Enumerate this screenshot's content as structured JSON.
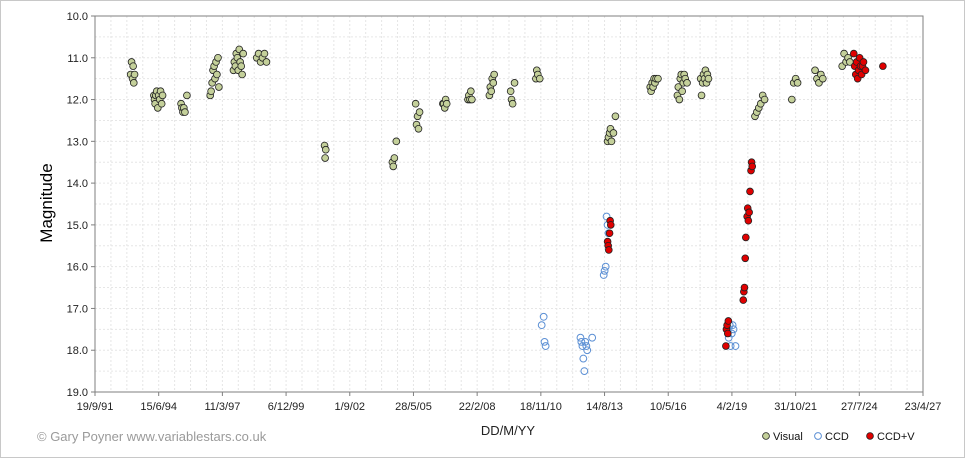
{
  "chart_data": {
    "type": "scatter",
    "title": "",
    "xlabel": "DD/M/YY",
    "ylabel": "Magnitude",
    "ylim": [
      10.0,
      19.0
    ],
    "y_inverted": true,
    "y_ticks": [
      "10.0",
      "11.0",
      "12.0",
      "13.0",
      "14.0",
      "15.0",
      "16.0",
      "17.0",
      "18.0",
      "19.0"
    ],
    "x_ticks": [
      "19/9/91",
      "15/6/94",
      "11/3/97",
      "6/12/99",
      "1/9/02",
      "28/5/05",
      "22/2/08",
      "18/11/10",
      "14/8/13",
      "10/5/16",
      "4/2/19",
      "31/10/21",
      "27/7/24",
      "23/4/27"
    ],
    "grid": true,
    "legend_position": "bottom-right",
    "series": [
      {
        "name": "Visual",
        "color": "#c4d09a",
        "marker": "filled-circle",
        "points": [
          [
            "1993-04-01",
            11.4
          ],
          [
            "1993-04-15",
            11.1
          ],
          [
            "1993-05-01",
            11.5
          ],
          [
            "1993-05-10",
            11.2
          ],
          [
            "1993-05-20",
            11.6
          ],
          [
            "1993-06-01",
            11.4
          ],
          [
            "1994-04-01",
            11.9
          ],
          [
            "1994-04-10",
            12.0
          ],
          [
            "1994-04-20",
            12.1
          ],
          [
            "1994-05-01",
            11.9
          ],
          [
            "1994-05-15",
            11.8
          ],
          [
            "1994-06-01",
            12.2
          ],
          [
            "1994-06-15",
            11.9
          ],
          [
            "1994-07-01",
            12.0
          ],
          [
            "1994-07-15",
            11.8
          ],
          [
            "1994-08-01",
            12.1
          ],
          [
            "1994-08-15",
            11.9
          ],
          [
            "1995-06-01",
            12.1
          ],
          [
            "1995-06-15",
            12.2
          ],
          [
            "1995-07-01",
            12.3
          ],
          [
            "1995-07-15",
            12.2
          ],
          [
            "1995-08-01",
            12.3
          ],
          [
            "1995-09-01",
            11.9
          ],
          [
            "1996-09-01",
            11.9
          ],
          [
            "1996-09-15",
            11.8
          ],
          [
            "1996-10-01",
            11.6
          ],
          [
            "1996-10-15",
            11.3
          ],
          [
            "1996-11-01",
            11.2
          ],
          [
            "1996-11-15",
            11.5
          ],
          [
            "1996-12-01",
            11.1
          ],
          [
            "1996-12-15",
            11.4
          ],
          [
            "1997-01-01",
            11.0
          ],
          [
            "1997-01-15",
            11.7
          ],
          [
            "1997-09-01",
            11.3
          ],
          [
            "1997-09-15",
            11.1
          ],
          [
            "1997-10-01",
            11.2
          ],
          [
            "1997-10-15",
            10.9
          ],
          [
            "1997-11-01",
            11.0
          ],
          [
            "1997-11-15",
            11.3
          ],
          [
            "1997-12-01",
            10.8
          ],
          [
            "1997-12-15",
            11.1
          ],
          [
            "1998-01-01",
            11.2
          ],
          [
            "1998-01-15",
            11.4
          ],
          [
            "1998-02-01",
            10.9
          ],
          [
            "1998-09-01",
            11.0
          ],
          [
            "1998-10-01",
            10.9
          ],
          [
            "1998-11-01",
            11.1
          ],
          [
            "1998-12-01",
            11.0
          ],
          [
            "1999-01-01",
            10.9
          ],
          [
            "1999-02-01",
            11.1
          ],
          [
            "2001-08-01",
            13.1
          ],
          [
            "2001-08-10",
            13.4
          ],
          [
            "2001-08-20",
            13.2
          ],
          [
            "2004-07-01",
            13.5
          ],
          [
            "2004-07-15",
            13.6
          ],
          [
            "2004-08-01",
            13.4
          ],
          [
            "2004-09-01",
            13.0
          ],
          [
            "2005-07-01",
            12.1
          ],
          [
            "2005-07-15",
            12.6
          ],
          [
            "2005-08-01",
            12.4
          ],
          [
            "2005-08-15",
            12.7
          ],
          [
            "2005-09-01",
            12.3
          ],
          [
            "2006-09-01",
            12.1
          ],
          [
            "2006-09-15",
            12.1
          ],
          [
            "2006-10-01",
            12.2
          ],
          [
            "2006-10-15",
            12.0
          ],
          [
            "2006-11-01",
            12.1
          ],
          [
            "2007-10-01",
            12.0
          ],
          [
            "2007-10-15",
            11.9
          ],
          [
            "2007-11-01",
            12.0
          ],
          [
            "2007-11-15",
            11.8
          ],
          [
            "2007-12-01",
            12.0
          ],
          [
            "2008-09-01",
            11.9
          ],
          [
            "2008-09-15",
            11.7
          ],
          [
            "2008-10-01",
            11.8
          ],
          [
            "2008-10-15",
            11.5
          ],
          [
            "2008-11-01",
            11.6
          ],
          [
            "2008-11-15",
            11.4
          ],
          [
            "2009-08-01",
            11.8
          ],
          [
            "2009-08-15",
            12.0
          ],
          [
            "2009-09-01",
            12.1
          ],
          [
            "2009-10-01",
            11.6
          ],
          [
            "2010-09-01",
            11.5
          ],
          [
            "2010-09-15",
            11.3
          ],
          [
            "2010-10-01",
            11.4
          ],
          [
            "2010-11-01",
            11.5
          ],
          [
            "2013-10-01",
            13.0
          ],
          [
            "2013-10-15",
            12.9
          ],
          [
            "2013-11-01",
            12.8
          ],
          [
            "2013-11-15",
            12.7
          ],
          [
            "2013-12-01",
            13.0
          ],
          [
            "2014-01-01",
            12.8
          ],
          [
            "2014-02-01",
            12.4
          ],
          [
            "2015-08-01",
            11.7
          ],
          [
            "2015-08-15",
            11.8
          ],
          [
            "2015-09-01",
            11.6
          ],
          [
            "2015-09-15",
            11.7
          ],
          [
            "2015-10-01",
            11.5
          ],
          [
            "2015-10-15",
            11.6
          ],
          [
            "2015-11-01",
            11.5
          ],
          [
            "2015-12-01",
            11.5
          ],
          [
            "2016-10-01",
            11.9
          ],
          [
            "2016-10-15",
            11.7
          ],
          [
            "2016-11-01",
            12.0
          ],
          [
            "2016-11-15",
            11.5
          ],
          [
            "2016-12-01",
            11.4
          ],
          [
            "2016-12-15",
            11.8
          ],
          [
            "2017-01-01",
            11.6
          ],
          [
            "2017-01-15",
            11.4
          ],
          [
            "2017-02-01",
            11.5
          ],
          [
            "2017-03-01",
            11.6
          ],
          [
            "2017-10-01",
            11.5
          ],
          [
            "2017-10-15",
            11.9
          ],
          [
            "2017-11-01",
            11.6
          ],
          [
            "2017-11-15",
            11.4
          ],
          [
            "2017-12-01",
            11.5
          ],
          [
            "2017-12-15",
            11.3
          ],
          [
            "2018-01-01",
            11.6
          ],
          [
            "2018-01-15",
            11.4
          ],
          [
            "2018-02-01",
            11.5
          ],
          [
            "2020-02-01",
            12.4
          ],
          [
            "2020-03-01",
            12.3
          ],
          [
            "2020-04-01",
            12.2
          ],
          [
            "2020-05-01",
            12.1
          ],
          [
            "2020-06-01",
            11.9
          ],
          [
            "2020-07-01",
            12.0
          ],
          [
            "2021-09-01",
            12.0
          ],
          [
            "2021-10-01",
            11.6
          ],
          [
            "2021-11-01",
            11.5
          ],
          [
            "2021-12-01",
            11.6
          ],
          [
            "2022-09-01",
            11.3
          ],
          [
            "2022-10-01",
            11.5
          ],
          [
            "2022-11-01",
            11.6
          ],
          [
            "2022-12-01",
            11.4
          ],
          [
            "2023-01-01",
            11.5
          ],
          [
            "2023-11-01",
            11.2
          ],
          [
            "2023-12-01",
            10.9
          ],
          [
            "2024-01-01",
            11.1
          ],
          [
            "2024-02-01",
            11.0
          ],
          [
            "2024-03-01",
            11.1
          ]
        ]
      },
      {
        "name": "CCD",
        "color": "#5b8fd4",
        "marker": "open-circle",
        "points": [
          [
            "2010-12-01",
            17.4
          ],
          [
            "2011-01-01",
            17.2
          ],
          [
            "2011-01-15",
            17.8
          ],
          [
            "2011-02-01",
            17.9
          ],
          [
            "2012-08-01",
            17.7
          ],
          [
            "2012-08-15",
            17.8
          ],
          [
            "2012-09-01",
            17.9
          ],
          [
            "2012-09-15",
            18.2
          ],
          [
            "2012-10-01",
            18.5
          ],
          [
            "2012-10-15",
            17.8
          ],
          [
            "2012-11-01",
            17.9
          ],
          [
            "2012-11-15",
            18.0
          ],
          [
            "2013-02-01",
            17.7
          ],
          [
            "2013-08-01",
            16.2
          ],
          [
            "2013-08-15",
            16.1
          ],
          [
            "2013-09-01",
            16.0
          ],
          [
            "2013-09-15",
            14.8
          ],
          [
            "2013-10-01",
            15.0
          ],
          [
            "2013-10-15",
            15.2
          ],
          [
            "2018-12-01",
            17.5
          ],
          [
            "2018-12-15",
            17.7
          ],
          [
            "2019-01-01",
            17.4
          ],
          [
            "2019-01-15",
            17.9
          ],
          [
            "2019-02-01",
            17.6
          ],
          [
            "2019-02-15",
            17.4
          ],
          [
            "2019-03-01",
            17.5
          ],
          [
            "2019-04-01",
            17.9
          ]
        ]
      },
      {
        "name": "CCD+V",
        "color": "#e00000",
        "marker": "filled-circle",
        "points": [
          [
            "2013-10-01",
            15.4
          ],
          [
            "2013-10-10",
            15.5
          ],
          [
            "2013-10-20",
            15.6
          ],
          [
            "2013-11-01",
            15.2
          ],
          [
            "2013-11-10",
            14.9
          ],
          [
            "2013-11-20",
            15.0
          ],
          [
            "2018-11-01",
            17.9
          ],
          [
            "2018-11-10",
            17.5
          ],
          [
            "2018-11-20",
            17.4
          ],
          [
            "2018-12-01",
            17.6
          ],
          [
            "2018-12-10",
            17.3
          ],
          [
            "2019-08-01",
            16.8
          ],
          [
            "2019-08-10",
            16.6
          ],
          [
            "2019-08-20",
            16.5
          ],
          [
            "2019-09-01",
            15.8
          ],
          [
            "2019-09-10",
            15.3
          ],
          [
            "2019-10-01",
            14.8
          ],
          [
            "2019-10-10",
            14.6
          ],
          [
            "2019-10-20",
            14.9
          ],
          [
            "2019-11-01",
            14.7
          ],
          [
            "2019-11-15",
            14.2
          ],
          [
            "2019-12-01",
            13.7
          ],
          [
            "2019-12-10",
            13.5
          ],
          [
            "2019-12-20",
            13.6
          ],
          [
            "2024-05-01",
            10.9
          ],
          [
            "2024-05-15",
            11.2
          ],
          [
            "2024-06-01",
            11.4
          ],
          [
            "2024-06-15",
            11.1
          ],
          [
            "2024-07-01",
            11.5
          ],
          [
            "2024-07-15",
            11.3
          ],
          [
            "2024-08-01",
            11.0
          ],
          [
            "2024-08-15",
            11.2
          ],
          [
            "2024-09-01",
            11.4
          ],
          [
            "2024-09-15",
            11.2
          ],
          [
            "2024-10-01",
            11.1
          ],
          [
            "2024-11-01",
            11.3
          ],
          [
            "2025-08-01",
            11.2
          ]
        ]
      }
    ]
  },
  "footer": {
    "copyright": "© Gary Poyner  www.variablestars.co.uk"
  }
}
